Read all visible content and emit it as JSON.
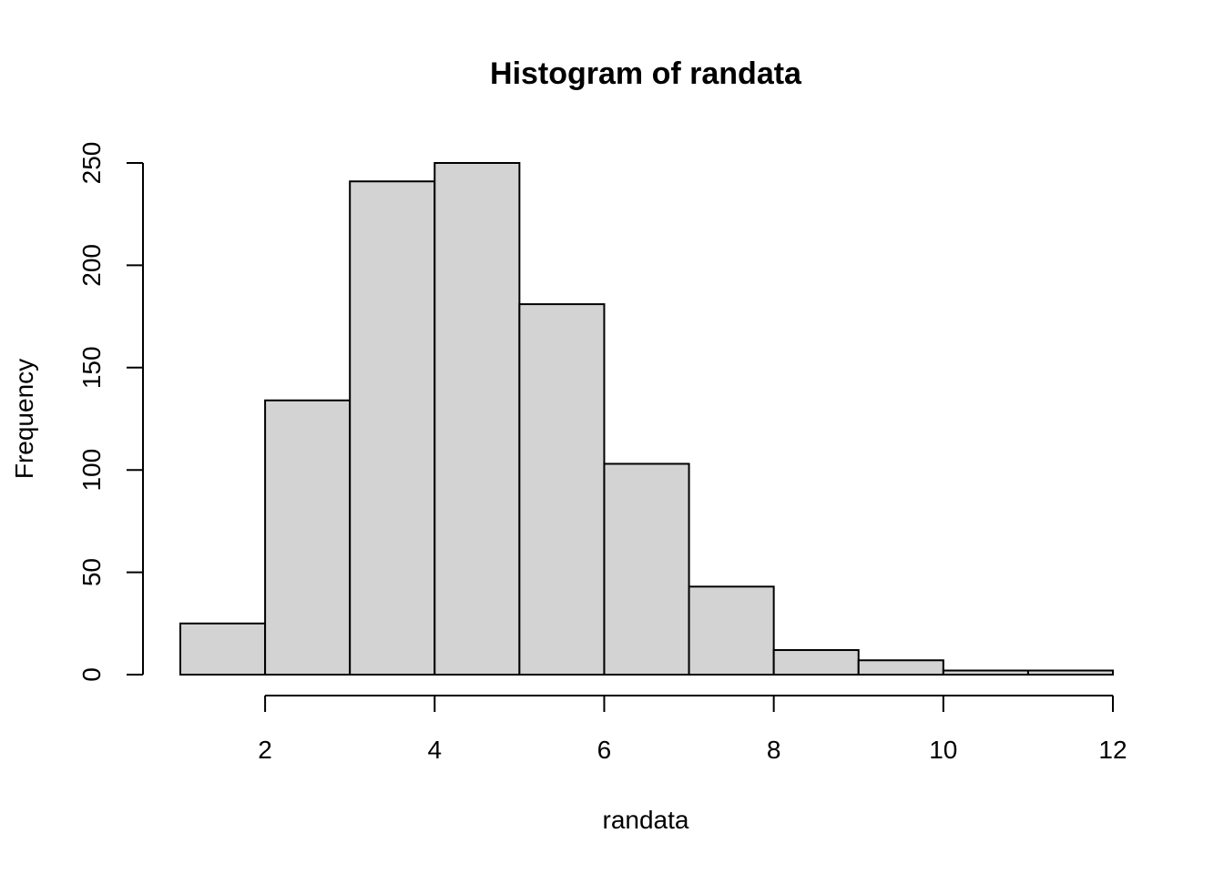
{
  "chart_data": {
    "type": "bar",
    "title": "Histogram of randata",
    "xlabel": "randata",
    "ylabel": "Frequency",
    "bin_edges": [
      1,
      2,
      3,
      4,
      5,
      6,
      7,
      8,
      9,
      10,
      11,
      12
    ],
    "values": [
      25,
      134,
      241,
      250,
      181,
      103,
      43,
      12,
      7,
      2,
      2
    ],
    "xlim": [
      1,
      12
    ],
    "ylim": [
      0,
      250
    ],
    "x_ticks": [
      2,
      4,
      6,
      8,
      10,
      12
    ],
    "y_ticks": [
      0,
      50,
      100,
      150,
      200,
      250
    ],
    "bar_color": "#d3d3d3",
    "grid": false,
    "legend": "none"
  }
}
